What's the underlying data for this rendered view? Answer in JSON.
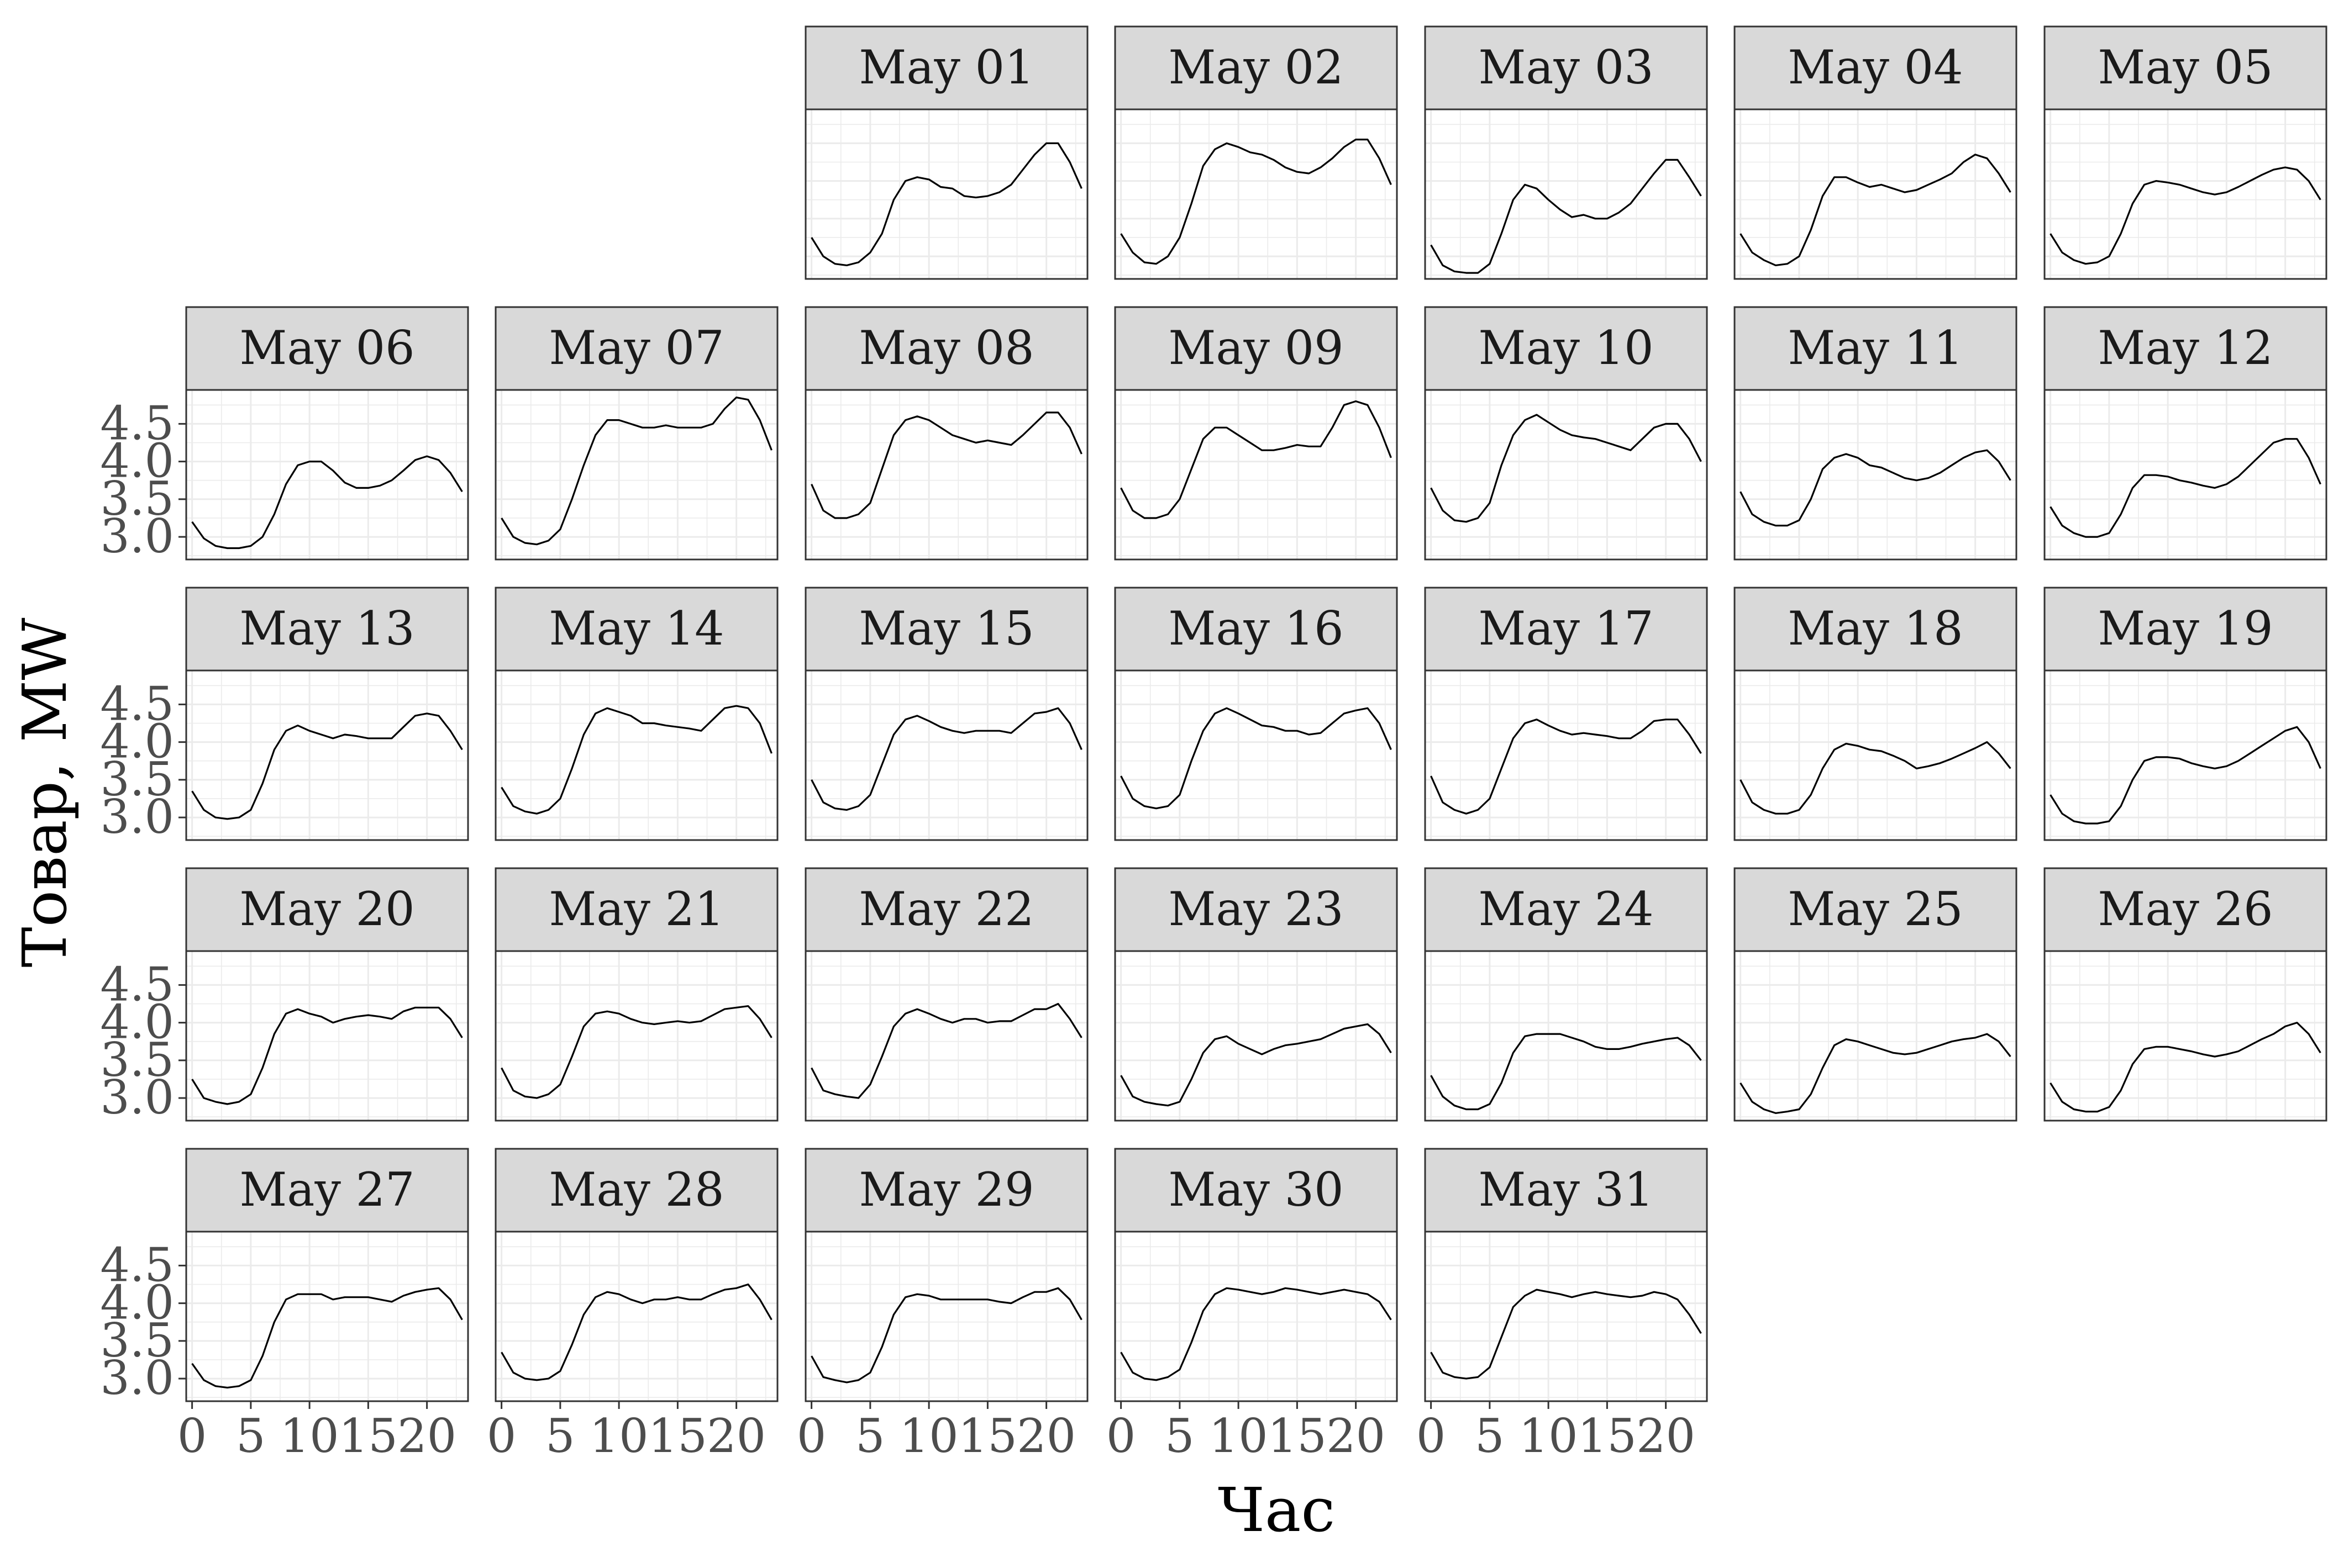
{
  "chart_data": {
    "type": "line",
    "layout": "faceted small multiples (facet_wrap, 7 columns, calendar-aligned)",
    "xlabel": "Час",
    "ylabel": "Товар, MW",
    "x_ticks": [
      0,
      5,
      10,
      15,
      20
    ],
    "y_ticks": [
      "3.0",
      "3.5",
      "4.0",
      "4.5"
    ],
    "xlim": [
      -0.5,
      23.5
    ],
    "ylim": [
      2.7,
      4.95
    ],
    "grid": true,
    "line_color": "#000000",
    "strip_fill": "#d9d9d9",
    "x": [
      0,
      1,
      2,
      3,
      4,
      5,
      6,
      7,
      8,
      9,
      10,
      11,
      12,
      13,
      14,
      15,
      16,
      17,
      18,
      19,
      20,
      21,
      22,
      23
    ],
    "facets": [
      {
        "label": "May 01",
        "values": [
          3.25,
          3.0,
          2.9,
          2.88,
          2.92,
          3.05,
          3.3,
          3.75,
          4.0,
          4.05,
          4.02,
          3.92,
          3.9,
          3.8,
          3.78,
          3.8,
          3.85,
          3.95,
          4.15,
          4.35,
          4.5,
          4.5,
          4.25,
          3.9
        ]
      },
      {
        "label": "May 02",
        "values": [
          3.3,
          3.05,
          2.92,
          2.9,
          3.0,
          3.25,
          3.7,
          4.2,
          4.42,
          4.5,
          4.45,
          4.38,
          4.35,
          4.28,
          4.18,
          4.12,
          4.1,
          4.18,
          4.3,
          4.45,
          4.55,
          4.55,
          4.3,
          3.95
        ]
      },
      {
        "label": "May 03",
        "values": [
          3.15,
          2.88,
          2.8,
          2.78,
          2.78,
          2.9,
          3.3,
          3.75,
          3.95,
          3.9,
          3.75,
          3.62,
          3.52,
          3.55,
          3.5,
          3.5,
          3.58,
          3.7,
          3.9,
          4.1,
          4.28,
          4.28,
          4.05,
          3.8
        ]
      },
      {
        "label": "May 04",
        "values": [
          3.3,
          3.05,
          2.95,
          2.88,
          2.9,
          3.0,
          3.35,
          3.8,
          4.05,
          4.05,
          3.98,
          3.92,
          3.95,
          3.9,
          3.85,
          3.88,
          3.95,
          4.02,
          4.1,
          4.25,
          4.35,
          4.3,
          4.1,
          3.85
        ]
      },
      {
        "label": "May 05",
        "values": [
          3.3,
          3.05,
          2.95,
          2.9,
          2.92,
          3.0,
          3.3,
          3.7,
          3.95,
          4.0,
          3.98,
          3.95,
          3.9,
          3.85,
          3.82,
          3.85,
          3.92,
          4.0,
          4.08,
          4.15,
          4.18,
          4.15,
          4.0,
          3.75
        ]
      },
      {
        "label": "May 06",
        "values": [
          3.2,
          2.98,
          2.88,
          2.85,
          2.85,
          2.88,
          3.0,
          3.3,
          3.7,
          3.95,
          4.0,
          4.0,
          3.88,
          3.72,
          3.65,
          3.65,
          3.68,
          3.75,
          3.88,
          4.02,
          4.07,
          4.02,
          3.85,
          3.6
        ]
      },
      {
        "label": "May 07",
        "values": [
          3.25,
          3.0,
          2.92,
          2.9,
          2.95,
          3.1,
          3.5,
          3.95,
          4.35,
          4.55,
          4.55,
          4.5,
          4.45,
          4.45,
          4.48,
          4.45,
          4.45,
          4.45,
          4.5,
          4.7,
          4.85,
          4.82,
          4.55,
          4.15
        ]
      },
      {
        "label": "May 08",
        "values": [
          3.7,
          3.35,
          3.25,
          3.25,
          3.3,
          3.45,
          3.9,
          4.35,
          4.55,
          4.6,
          4.55,
          4.45,
          4.35,
          4.3,
          4.25,
          4.28,
          4.25,
          4.22,
          4.35,
          4.5,
          4.65,
          4.65,
          4.45,
          4.1
        ]
      },
      {
        "label": "May 09",
        "values": [
          3.65,
          3.35,
          3.25,
          3.25,
          3.3,
          3.5,
          3.9,
          4.3,
          4.45,
          4.45,
          4.35,
          4.25,
          4.15,
          4.15,
          4.18,
          4.22,
          4.2,
          4.2,
          4.45,
          4.75,
          4.8,
          4.75,
          4.45,
          4.05
        ]
      },
      {
        "label": "May 10",
        "values": [
          3.65,
          3.35,
          3.22,
          3.2,
          3.25,
          3.45,
          3.95,
          4.35,
          4.55,
          4.62,
          4.52,
          4.42,
          4.35,
          4.32,
          4.3,
          4.25,
          4.2,
          4.15,
          4.3,
          4.45,
          4.5,
          4.5,
          4.3,
          4.0
        ]
      },
      {
        "label": "May 11",
        "values": [
          3.6,
          3.3,
          3.2,
          3.15,
          3.15,
          3.22,
          3.5,
          3.9,
          4.05,
          4.1,
          4.05,
          3.95,
          3.92,
          3.85,
          3.78,
          3.75,
          3.78,
          3.85,
          3.95,
          4.05,
          4.12,
          4.15,
          4.0,
          3.75
        ]
      },
      {
        "label": "May 12",
        "values": [
          3.4,
          3.15,
          3.05,
          3.0,
          3.0,
          3.05,
          3.3,
          3.65,
          3.82,
          3.82,
          3.8,
          3.75,
          3.72,
          3.68,
          3.65,
          3.7,
          3.8,
          3.95,
          4.1,
          4.25,
          4.3,
          4.3,
          4.05,
          3.7
        ]
      },
      {
        "label": "May 13",
        "values": [
          3.35,
          3.1,
          3.0,
          2.98,
          3.0,
          3.1,
          3.45,
          3.9,
          4.15,
          4.22,
          4.15,
          4.1,
          4.05,
          4.1,
          4.08,
          4.05,
          4.05,
          4.05,
          4.2,
          4.35,
          4.38,
          4.35,
          4.15,
          3.9
        ]
      },
      {
        "label": "May 14",
        "values": [
          3.4,
          3.15,
          3.08,
          3.05,
          3.1,
          3.25,
          3.65,
          4.1,
          4.38,
          4.45,
          4.4,
          4.35,
          4.25,
          4.25,
          4.22,
          4.2,
          4.18,
          4.15,
          4.3,
          4.45,
          4.48,
          4.45,
          4.25,
          3.85
        ]
      },
      {
        "label": "May 15",
        "values": [
          3.5,
          3.2,
          3.12,
          3.1,
          3.15,
          3.3,
          3.7,
          4.1,
          4.3,
          4.35,
          4.28,
          4.2,
          4.15,
          4.12,
          4.15,
          4.15,
          4.15,
          4.12,
          4.25,
          4.38,
          4.4,
          4.45,
          4.25,
          3.9
        ]
      },
      {
        "label": "May 16",
        "values": [
          3.55,
          3.25,
          3.15,
          3.12,
          3.15,
          3.3,
          3.75,
          4.15,
          4.38,
          4.45,
          4.38,
          4.3,
          4.22,
          4.2,
          4.15,
          4.15,
          4.1,
          4.12,
          4.25,
          4.38,
          4.42,
          4.45,
          4.25,
          3.9
        ]
      },
      {
        "label": "May 17",
        "values": [
          3.55,
          3.2,
          3.1,
          3.05,
          3.1,
          3.25,
          3.65,
          4.05,
          4.25,
          4.3,
          4.22,
          4.15,
          4.1,
          4.12,
          4.1,
          4.08,
          4.05,
          4.05,
          4.15,
          4.28,
          4.3,
          4.3,
          4.1,
          3.85
        ]
      },
      {
        "label": "May 18",
        "values": [
          3.5,
          3.2,
          3.1,
          3.05,
          3.05,
          3.1,
          3.3,
          3.65,
          3.9,
          3.98,
          3.95,
          3.9,
          3.88,
          3.82,
          3.75,
          3.65,
          3.68,
          3.72,
          3.78,
          3.85,
          3.92,
          4.0,
          3.85,
          3.65
        ]
      },
      {
        "label": "May 19",
        "values": [
          3.3,
          3.05,
          2.95,
          2.92,
          2.92,
          2.95,
          3.15,
          3.5,
          3.75,
          3.8,
          3.8,
          3.78,
          3.72,
          3.68,
          3.65,
          3.68,
          3.75,
          3.85,
          3.95,
          4.05,
          4.15,
          4.2,
          4.0,
          3.65
        ]
      },
      {
        "label": "May 20",
        "values": [
          3.25,
          3.0,
          2.95,
          2.92,
          2.95,
          3.05,
          3.4,
          3.85,
          4.12,
          4.18,
          4.12,
          4.08,
          4.0,
          4.05,
          4.08,
          4.1,
          4.08,
          4.05,
          4.15,
          4.2,
          4.2,
          4.2,
          4.05,
          3.8
        ]
      },
      {
        "label": "May 21",
        "values": [
          3.4,
          3.1,
          3.02,
          3.0,
          3.05,
          3.18,
          3.55,
          3.95,
          4.12,
          4.15,
          4.12,
          4.05,
          4.0,
          3.98,
          4.0,
          4.02,
          4.0,
          4.02,
          4.1,
          4.18,
          4.2,
          4.22,
          4.05,
          3.8
        ]
      },
      {
        "label": "May 22",
        "values": [
          3.4,
          3.1,
          3.05,
          3.02,
          3.0,
          3.18,
          3.55,
          3.95,
          4.12,
          4.18,
          4.12,
          4.05,
          4.0,
          4.05,
          4.05,
          4.0,
          4.02,
          4.02,
          4.1,
          4.18,
          4.18,
          4.25,
          4.05,
          3.8
        ]
      },
      {
        "label": "May 23",
        "values": [
          3.3,
          3.02,
          2.95,
          2.92,
          2.9,
          2.95,
          3.25,
          3.6,
          3.78,
          3.82,
          3.72,
          3.65,
          3.58,
          3.65,
          3.7,
          3.72,
          3.75,
          3.78,
          3.85,
          3.92,
          3.95,
          3.98,
          3.85,
          3.6
        ]
      },
      {
        "label": "May 24",
        "values": [
          3.3,
          3.02,
          2.9,
          2.85,
          2.85,
          2.92,
          3.2,
          3.6,
          3.82,
          3.85,
          3.85,
          3.85,
          3.8,
          3.75,
          3.68,
          3.65,
          3.65,
          3.68,
          3.72,
          3.75,
          3.78,
          3.8,
          3.7,
          3.5
        ]
      },
      {
        "label": "May 25",
        "values": [
          3.2,
          2.95,
          2.85,
          2.8,
          2.82,
          2.85,
          3.05,
          3.4,
          3.7,
          3.78,
          3.75,
          3.7,
          3.65,
          3.6,
          3.58,
          3.6,
          3.65,
          3.7,
          3.75,
          3.78,
          3.8,
          3.85,
          3.75,
          3.55
        ]
      },
      {
        "label": "May 26",
        "values": [
          3.2,
          2.95,
          2.85,
          2.82,
          2.82,
          2.88,
          3.1,
          3.45,
          3.65,
          3.68,
          3.68,
          3.65,
          3.62,
          3.58,
          3.55,
          3.58,
          3.62,
          3.7,
          3.78,
          3.85,
          3.95,
          4.0,
          3.85,
          3.6
        ]
      },
      {
        "label": "May 27",
        "values": [
          3.2,
          2.98,
          2.9,
          2.88,
          2.9,
          2.98,
          3.3,
          3.75,
          4.05,
          4.12,
          4.12,
          4.12,
          4.05,
          4.08,
          4.08,
          4.08,
          4.05,
          4.02,
          4.1,
          4.15,
          4.18,
          4.2,
          4.05,
          3.78
        ]
      },
      {
        "label": "May 28",
        "values": [
          3.35,
          3.08,
          3.0,
          2.98,
          3.0,
          3.1,
          3.45,
          3.85,
          4.08,
          4.15,
          4.12,
          4.05,
          4.0,
          4.05,
          4.05,
          4.08,
          4.05,
          4.05,
          4.12,
          4.18,
          4.2,
          4.25,
          4.05,
          3.78
        ]
      },
      {
        "label": "May 29",
        "values": [
          3.3,
          3.02,
          2.98,
          2.95,
          2.98,
          3.08,
          3.42,
          3.85,
          4.08,
          4.12,
          4.1,
          4.05,
          4.05,
          4.05,
          4.05,
          4.05,
          4.02,
          4.0,
          4.08,
          4.15,
          4.15,
          4.2,
          4.05,
          3.78
        ]
      },
      {
        "label": "May 30",
        "values": [
          3.35,
          3.08,
          3.0,
          2.98,
          3.02,
          3.12,
          3.48,
          3.9,
          4.12,
          4.2,
          4.18,
          4.15,
          4.12,
          4.15,
          4.2,
          4.18,
          4.15,
          4.12,
          4.15,
          4.18,
          4.15,
          4.12,
          4.02,
          3.78
        ]
      },
      {
        "label": "May 31",
        "values": [
          3.35,
          3.08,
          3.02,
          3.0,
          3.02,
          3.15,
          3.55,
          3.95,
          4.1,
          4.18,
          4.15,
          4.12,
          4.08,
          4.12,
          4.15,
          4.12,
          4.1,
          4.08,
          4.1,
          4.15,
          4.12,
          4.05,
          3.85,
          3.6
        ]
      }
    ]
  }
}
